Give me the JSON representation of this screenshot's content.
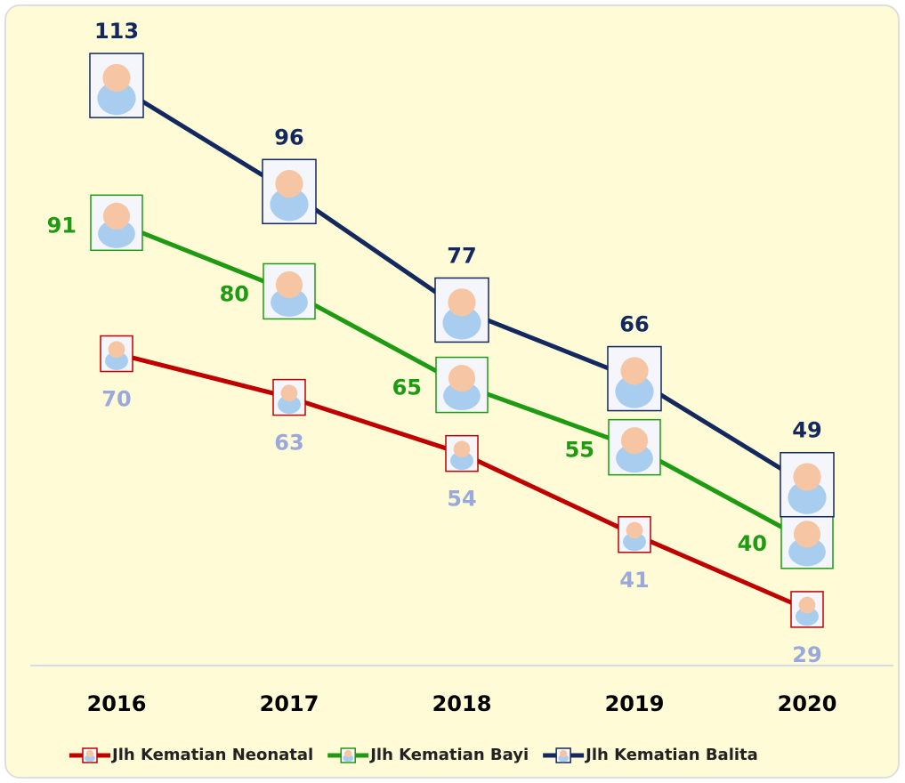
{
  "chart_data": {
    "type": "line",
    "categories": [
      "2016",
      "2017",
      "2018",
      "2019",
      "2020"
    ],
    "series": [
      {
        "name": "Jlh Kematian Neonatal",
        "color": "#c00000",
        "label_color": "#9aa9dc",
        "values": [
          70,
          63,
          54,
          41,
          29
        ]
      },
      {
        "name": "Jlh Kematian Bayi",
        "color": "#1e9b12",
        "label_color": "#1e9b12",
        "values": [
          91,
          80,
          65,
          55,
          40
        ]
      },
      {
        "name": "Jlh Kematian Balita",
        "color": "#13285e",
        "label_color": "#13285e",
        "values": [
          113,
          96,
          77,
          66,
          49
        ]
      }
    ],
    "ylim": [
      20,
      125
    ]
  }
}
